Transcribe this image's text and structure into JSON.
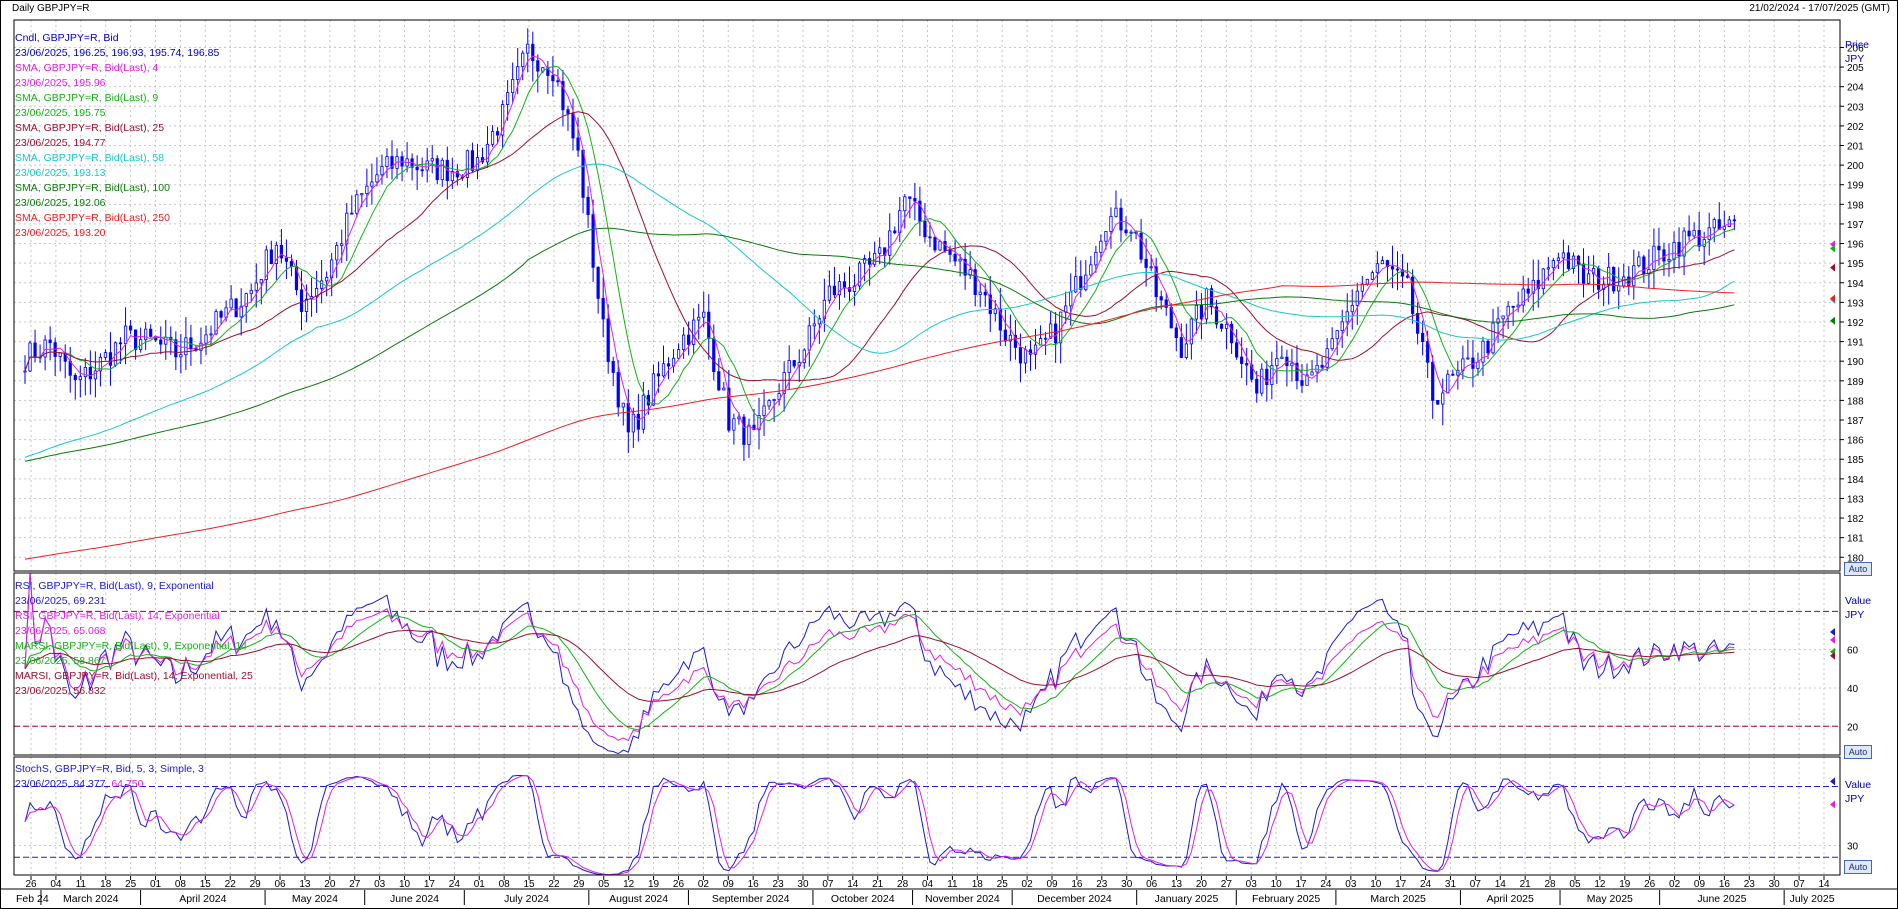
{
  "header": {
    "left": "Daily GBPJPY=R",
    "right": "21/02/2024 - 17/07/2025 (GMT)"
  },
  "price_panel": {
    "axis_title_1": "Price",
    "axis_title_2": "JPY",
    "auto_label": "Auto",
    "legend": [
      {
        "label": "Cndl, GBPJPY=R, Bid",
        "value": "23/06/2025, 196.25, 196.93, 195.74, 196.85",
        "color": "#0000c8"
      },
      {
        "label": "SMA, GBPJPY=R, Bid(Last),  4",
        "value": "23/06/2025, 195.96",
        "color": "#e020e0"
      },
      {
        "label": "SMA, GBPJPY=R, Bid(Last),  9",
        "value": "23/06/2025, 195.75",
        "color": "#16b016"
      },
      {
        "label": "SMA, GBPJPY=R, Bid(Last),  25",
        "value": "23/06/2025, 194.77",
        "color": "#9a1030"
      },
      {
        "label": "SMA, GBPJPY=R, Bid(Last),  58",
        "value": "23/06/2025, 193.13",
        "color": "#18c8c8"
      },
      {
        "label": "SMA, GBPJPY=R, Bid(Last),  100",
        "value": "23/06/2025, 192.06",
        "color": "#0a7a0a"
      },
      {
        "label": "SMA, GBPJPY=R, Bid(Last),  250",
        "value": "23/06/2025, 193.20",
        "color": "#ee2020"
      }
    ]
  },
  "rsi_panel": {
    "axis_title_1": "Value",
    "axis_title_2": "JPY",
    "auto_label": "Auto",
    "legend": [
      {
        "label": "RSI, GBPJPY=R, Bid(Last),  9, Exponential",
        "value": "23/06/2025, 69.231",
        "color": "#1a1ad0"
      },
      {
        "label": "RSI, GBPJPY=R, Bid(Last),  14, Exponential",
        "value": "23/06/2025, 65.068",
        "color": "#e020e0"
      },
      {
        "label": "MARSI, GBPJPY=R, Bid(Last),  9, Exponential, 14",
        "value": "23/06/2025, 58.867",
        "color": "#16b016"
      },
      {
        "label": "MARSI, GBPJPY=R, Bid(Last),  14, Exponential, 25",
        "value": "23/06/2025, 56.832",
        "color": "#9a1030"
      }
    ]
  },
  "stoch_panel": {
    "axis_title_1": "Value",
    "axis_title_2": "JPY",
    "auto_label": "Auto",
    "legend_label": "StochS, GBPJPY=R, Bid,  5, 3, Simple, 3",
    "legend_value_1": "23/06/2025, 84.377,",
    "legend_value_2": "64.750",
    "color_k": "#1a1ad0",
    "color_d": "#e020e0"
  },
  "colors": {
    "grid": "#c8c8c8",
    "frame": "#000000",
    "candle_up": "#0000ff",
    "candle_down": "#0000ff",
    "level_line": "#a00030",
    "stoch_level": "#2020c0"
  },
  "chart_data": [
    {
      "type": "candlestick",
      "title": "Daily GBPJPY=R",
      "ylabel": "Price JPY",
      "ylim": [
        179.3,
        207.4
      ],
      "yticks": [
        180,
        181,
        182,
        183,
        184,
        185,
        186,
        187,
        188,
        189,
        190,
        191,
        192,
        193,
        194,
        195,
        196,
        197,
        198,
        199,
        200,
        201,
        202,
        203,
        204,
        205,
        206
      ],
      "x_tick_days": [
        "26",
        "04",
        "11",
        "18",
        "25",
        "01",
        "08",
        "15",
        "22",
        "29",
        "06",
        "13",
        "20",
        "27",
        "03",
        "10",
        "17",
        "24",
        "01",
        "08",
        "15",
        "22",
        "29",
        "05",
        "12",
        "19",
        "26",
        "02",
        "09",
        "16",
        "23",
        "30",
        "07",
        "14",
        "21",
        "28",
        "04",
        "11",
        "18",
        "25",
        "02",
        "09",
        "16",
        "23",
        "30",
        "06",
        "13",
        "20",
        "27",
        "03",
        "10",
        "17",
        "24",
        "03",
        "10",
        "17",
        "24",
        "31",
        "07",
        "14",
        "21",
        "28",
        "05",
        "12",
        "19",
        "26",
        "02",
        "09",
        "16",
        "23",
        "30",
        "07",
        "14"
      ],
      "x_months": [
        "Feb 24",
        "March 2024",
        "April 2024",
        "May 2024",
        "June 2024",
        "July 2024",
        "August 2024",
        "September 2024",
        "October 2024",
        "November 2024",
        "December 2024",
        "January 2025",
        "February 2025",
        "March 2025",
        "April 2025",
        "May 2025",
        "June 2025",
        "July 2025"
      ],
      "weekly_closes": [
        190.2,
        190.9,
        188.8,
        189.9,
        191.2,
        191.0,
        190.4,
        191.2,
        192.4,
        193.6,
        196.1,
        193.0,
        194.5,
        197.6,
        199.5,
        200.3,
        199.8,
        199.8,
        200.2,
        202.5,
        205.8,
        205.0,
        200.5,
        191.6,
        186.2,
        188.7,
        191.0,
        192.2,
        187.0,
        186.0,
        188.7,
        190.7,
        193.5,
        194.1,
        195.2,
        198.3,
        196.4,
        195.1,
        193.8,
        191.4,
        189.9,
        191.6,
        194.3,
        197.3,
        197.0,
        193.4,
        190.8,
        193.1,
        191.4,
        188.4,
        190.9,
        188.7,
        190.5,
        193.7,
        194.9,
        193.6,
        188.2,
        189.2,
        190.6,
        192.5,
        193.6,
        195.7,
        194.2,
        194.2,
        194.6,
        195.4,
        196.2,
        196.5,
        196.9
      ],
      "series": [
        {
          "name": "SMA 4",
          "last": 195.96
        },
        {
          "name": "SMA 9",
          "last": 195.75
        },
        {
          "name": "SMA 25",
          "last": 194.77
        },
        {
          "name": "SMA 58",
          "last": 193.13,
          "start": 185.1
        },
        {
          "name": "SMA 100",
          "last": 192.06,
          "start": 184.9
        },
        {
          "name": "SMA 250",
          "last": 193.2,
          "start": 179.9
        }
      ]
    },
    {
      "type": "line",
      "title": "RSI",
      "yticks": [
        20,
        40,
        60
      ],
      "levels": [
        20,
        80
      ],
      "ylim": [
        5,
        100
      ],
      "series": [
        {
          "name": "RSI 9",
          "last": 69.231
        },
        {
          "name": "RSI 14",
          "last": 65.068
        },
        {
          "name": "MARSI 9",
          "last": 58.867
        },
        {
          "name": "MARSI 14",
          "last": 56.832
        }
      ]
    },
    {
      "type": "line",
      "title": "StochS",
      "yticks": [
        30
      ],
      "levels": [
        20,
        80
      ],
      "ylim": [
        5,
        105
      ],
      "series": [
        {
          "name": "%K",
          "last": 84.377
        },
        {
          "name": "%D",
          "last": 64.75
        }
      ]
    }
  ]
}
